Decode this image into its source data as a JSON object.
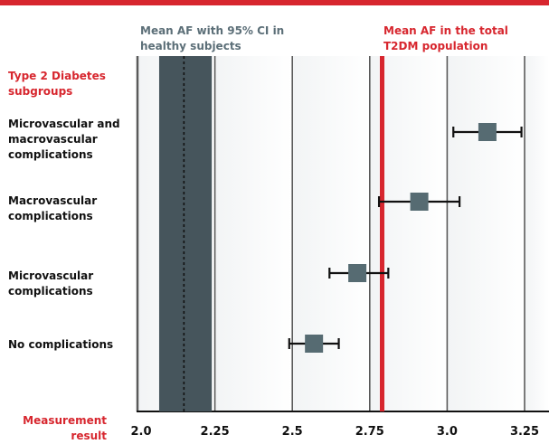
{
  "chart_data": {
    "type": "forest",
    "xlabel": "Measurement result",
    "xlim": [
      2.0,
      3.3
    ],
    "xticks": [
      2.0,
      2.25,
      2.5,
      2.75,
      3.0,
      3.25
    ],
    "xtick_labels": [
      "2.0",
      "2.25",
      "2.5",
      "2.75",
      "3.0",
      "3.25"
    ],
    "group_heading": "Type 2 Diabetes subgroups",
    "reference_healthy": {
      "label": "Mean AF with 95% CI in healthy subjects",
      "mean": 2.15,
      "ci": [
        2.07,
        2.24
      ],
      "color": "#46555c"
    },
    "reference_total": {
      "label": "Mean AF in the total T2DM population",
      "value": 2.79,
      "color": "#d7262e"
    },
    "subgroups": [
      {
        "label": "Microvascular and macrovascular complications",
        "mean": 3.13,
        "ci": [
          3.02,
          3.24
        ]
      },
      {
        "label": "Macrovascular complications",
        "mean": 2.91,
        "ci": [
          2.78,
          3.04
        ]
      },
      {
        "label": "Microvascular complications",
        "mean": 2.71,
        "ci": [
          2.62,
          2.81
        ]
      },
      {
        "label": "No complications",
        "mean": 2.57,
        "ci": [
          2.49,
          2.65
        ]
      }
    ]
  }
}
